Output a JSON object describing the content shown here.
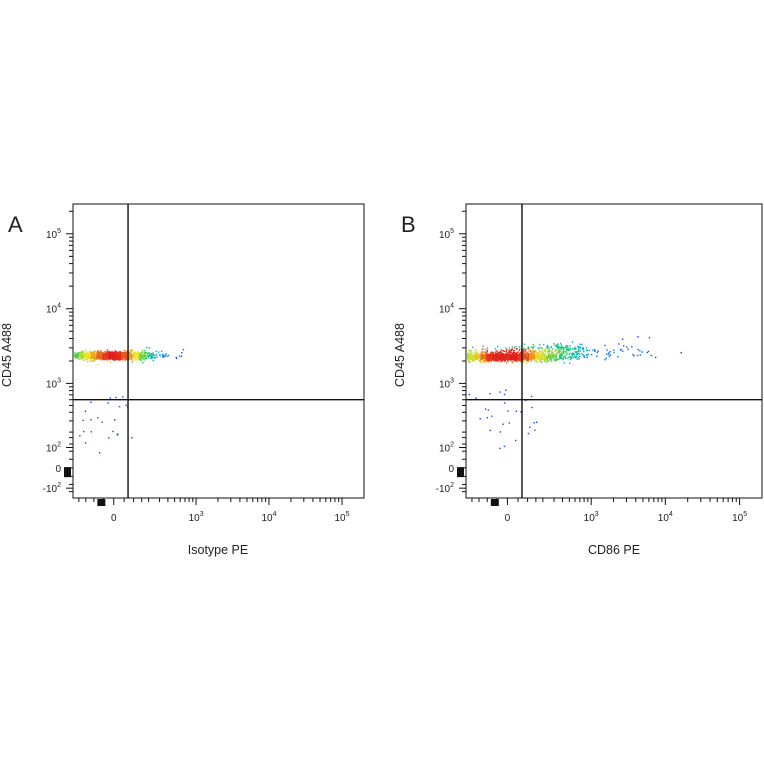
{
  "chart_data": [
    {
      "type": "scatter",
      "panel": "A",
      "xlabel": "Isotype PE",
      "ylabel": "CD45 A488",
      "x_ticks": [
        {
          "base": "0",
          "exp": ""
        },
        {
          "base": "10",
          "exp": "3"
        },
        {
          "base": "10",
          "exp": "4"
        },
        {
          "base": "10",
          "exp": "5"
        }
      ],
      "y_ticks": [
        {
          "base": "10",
          "exp": "5"
        },
        {
          "base": "10",
          "exp": "4"
        },
        {
          "base": "10",
          "exp": "3"
        },
        {
          "base": "10",
          "exp": "2"
        },
        {
          "base": "0",
          "exp": ""
        },
        {
          "base": "-10",
          "exp": "2"
        }
      ],
      "gate": {
        "x": 70,
        "y": 600
      },
      "populations": [
        {
          "cx": -20,
          "cy": 2400,
          "sx": 0.75,
          "sy": 0.07,
          "n": 1100
        },
        {
          "cx": -20,
          "cy": 300,
          "sx": 0.55,
          "sy": 0.45,
          "n": 25
        }
      ],
      "outliers": [
        [
          650,
          2900
        ],
        [
          180,
          3100
        ]
      ]
    },
    {
      "type": "scatter",
      "panel": "B",
      "xlabel": "CD86 PE",
      "ylabel": "CD45 A488",
      "x_ticks": [
        {
          "base": "0",
          "exp": ""
        },
        {
          "base": "10",
          "exp": "3"
        },
        {
          "base": "10",
          "exp": "4"
        },
        {
          "base": "10",
          "exp": "5"
        }
      ],
      "y_ticks": [
        {
          "base": "10",
          "exp": "5"
        },
        {
          "base": "10",
          "exp": "4"
        },
        {
          "base": "10",
          "exp": "3"
        },
        {
          "base": "10",
          "exp": "2"
        },
        {
          "base": "0",
          "exp": ""
        },
        {
          "base": "-10",
          "exp": "2"
        }
      ],
      "gate": {
        "x": 70,
        "y": 600
      },
      "populations": [
        {
          "cx": -20,
          "cy": 2300,
          "sx": 0.9,
          "sy": 0.06,
          "n": 1300
        },
        {
          "cx": 80,
          "cy": 2600,
          "sx": 1.6,
          "sy": 0.1,
          "n": 450
        },
        {
          "cx": 400,
          "cy": 3000,
          "sx": 0.4,
          "sy": 0.08,
          "n": 80
        },
        {
          "cx": 0,
          "cy": 300,
          "sx": 0.7,
          "sy": 0.45,
          "n": 30
        }
      ],
      "outliers": [
        [
          2600,
          4000
        ],
        [
          4200,
          4300
        ],
        [
          1500,
          3300
        ],
        [
          6000,
          4200
        ]
      ]
    }
  ]
}
